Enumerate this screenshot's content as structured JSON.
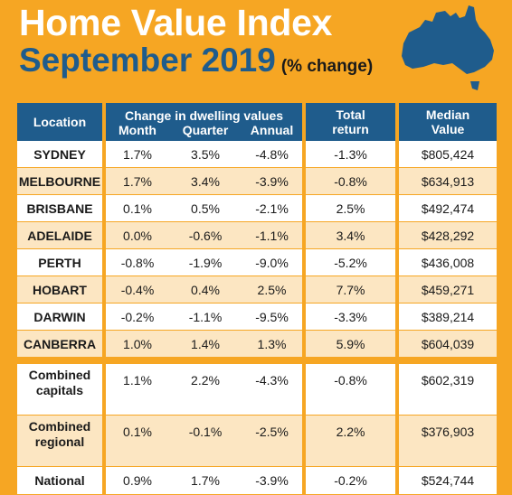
{
  "header": {
    "title": "Home Value Index",
    "period": "September 2019",
    "subtitle": "(% change)"
  },
  "table": {
    "col_location": "Location",
    "col_group": "Change in dwelling values",
    "col_month": "Month",
    "col_quarter": "Quarter",
    "col_annual": "Annual",
    "col_total_line1": "Total",
    "col_total_line2": "return",
    "col_median_line1": "Median",
    "col_median_line2": "Value",
    "rows": [
      {
        "location": "SYDNEY",
        "month": "1.7%",
        "quarter": "3.5%",
        "annual": "-4.8%",
        "total": "-1.3%",
        "median": "$805,424"
      },
      {
        "location": "MELBOURNE",
        "month": "1.7%",
        "quarter": "3.4%",
        "annual": "-3.9%",
        "total": "-0.8%",
        "median": "$634,913"
      },
      {
        "location": "BRISBANE",
        "month": "0.1%",
        "quarter": "0.5%",
        "annual": "-2.1%",
        "total": "2.5%",
        "median": "$492,474"
      },
      {
        "location": "ADELAIDE",
        "month": "0.0%",
        "quarter": "-0.6%",
        "annual": "-1.1%",
        "total": "3.4%",
        "median": "$428,292"
      },
      {
        "location": "PERTH",
        "month": "-0.8%",
        "quarter": "-1.9%",
        "annual": "-9.0%",
        "total": "-5.2%",
        "median": "$436,008"
      },
      {
        "location": "HOBART",
        "month": "-0.4%",
        "quarter": "0.4%",
        "annual": "2.5%",
        "total": "7.7%",
        "median": "$459,271"
      },
      {
        "location": "DARWIN",
        "month": "-0.2%",
        "quarter": "-1.1%",
        "annual": "-9.5%",
        "total": "-3.3%",
        "median": "$389,214"
      },
      {
        "location": "CANBERRA",
        "month": "1.0%",
        "quarter": "1.4%",
        "annual": "1.3%",
        "total": "5.9%",
        "median": "$604,039"
      }
    ],
    "summary": [
      {
        "location_line1": "Combined",
        "location_line2": "capitals",
        "month": "1.1%",
        "quarter": "2.2%",
        "annual": "-4.3%",
        "total": "-0.8%",
        "median": "$602,319"
      },
      {
        "location_line1": "Combined",
        "location_line2": "regional",
        "month": "0.1%",
        "quarter": "-0.1%",
        "annual": "-2.5%",
        "total": "2.2%",
        "median": "$376,903"
      },
      {
        "location_line1": "National",
        "location_line2": "",
        "month": "0.9%",
        "quarter": "1.7%",
        "annual": "-3.9%",
        "total": "-0.2%",
        "median": "$524,744"
      }
    ]
  },
  "watermark": "· • · ·"
}
